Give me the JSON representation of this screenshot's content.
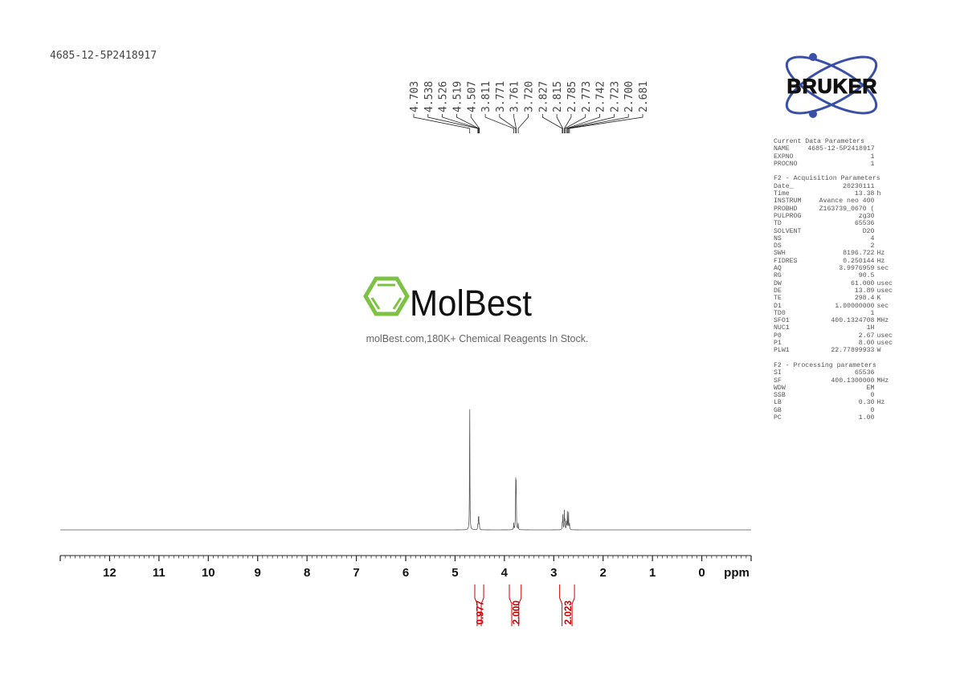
{
  "sample_id": "4685-12-5P2418917",
  "watermark": {
    "brand": "MolBest",
    "tagline": "molBest.com,180K+ Chemical Reagents In Stock.",
    "color": "#7dc242"
  },
  "logo": {
    "text": "BRUKER",
    "color": "#3a4fa8"
  },
  "parameters": {
    "current": {
      "title": "Current Data Parameters",
      "rows": [
        {
          "k": "NAME",
          "v": "4685-12-5P2418917",
          "u": ""
        },
        {
          "k": "EXPNO",
          "v": "1",
          "u": ""
        },
        {
          "k": "PROCNO",
          "v": "1",
          "u": ""
        }
      ]
    },
    "acquisition": {
      "title": "F2 - Acquisition Parameters",
      "rows": [
        {
          "k": "Date_",
          "v": "20230111",
          "u": ""
        },
        {
          "k": "Time",
          "v": "13.38",
          "u": "h"
        },
        {
          "k": "INSTRUM",
          "v": "Avance neo 400",
          "u": ""
        },
        {
          "k": "PROBHD",
          "v": "Z163739_0670 (",
          "u": ""
        },
        {
          "k": "PULPROG",
          "v": "zg30",
          "u": ""
        },
        {
          "k": "TD",
          "v": "65536",
          "u": ""
        },
        {
          "k": "SOLVENT",
          "v": "D2O",
          "u": ""
        },
        {
          "k": "NS",
          "v": "4",
          "u": ""
        },
        {
          "k": "DS",
          "v": "2",
          "u": ""
        },
        {
          "k": "SWH",
          "v": "8196.722",
          "u": "Hz"
        },
        {
          "k": "FIDRES",
          "v": "0.250144",
          "u": "Hz"
        },
        {
          "k": "AQ",
          "v": "3.9976959",
          "u": "sec"
        },
        {
          "k": "RG",
          "v": "90.5",
          "u": ""
        },
        {
          "k": "DW",
          "v": "61.000",
          "u": "usec"
        },
        {
          "k": "DE",
          "v": "13.89",
          "u": "usec"
        },
        {
          "k": "TE",
          "v": "298.4",
          "u": "K"
        },
        {
          "k": "D1",
          "v": "1.00000000",
          "u": "sec"
        },
        {
          "k": "TD0",
          "v": "1",
          "u": ""
        },
        {
          "k": "SFO1",
          "v": "400.1324708",
          "u": "MHz"
        },
        {
          "k": "NUC1",
          "v": "1H",
          "u": ""
        },
        {
          "k": "P0",
          "v": "2.67",
          "u": "usec"
        },
        {
          "k": "P1",
          "v": "8.00",
          "u": "usec"
        },
        {
          "k": "PLW1",
          "v": "22.77899933",
          "u": "W"
        }
      ]
    },
    "processing": {
      "title": "F2 - Processing parameters",
      "rows": [
        {
          "k": "SI",
          "v": "65536",
          "u": ""
        },
        {
          "k": "SF",
          "v": "400.1300000",
          "u": "MHz"
        },
        {
          "k": "WDW",
          "v": "EM",
          "u": ""
        },
        {
          "k": "SSB",
          "v": "0",
          "u": ""
        },
        {
          "k": "LB",
          "v": "0.30",
          "u": "Hz"
        },
        {
          "k": "GB",
          "v": "0",
          "u": ""
        },
        {
          "k": "PC",
          "v": "1.00",
          "u": ""
        }
      ]
    }
  },
  "chart_data": {
    "type": "line",
    "xlabel": "ppm",
    "xlim": [
      13,
      -1
    ],
    "x_reversed": true,
    "xticks": [
      "12",
      "11",
      "10",
      "9",
      "8",
      "7",
      "6",
      "5",
      "4",
      "3",
      "2",
      "1",
      "0"
    ],
    "peak_labels": [
      "4.703",
      "4.538",
      "4.526",
      "4.519",
      "4.507",
      "3.811",
      "3.771",
      "3.761",
      "3.720",
      "2.827",
      "2.815",
      "2.785",
      "2.773",
      "2.742",
      "2.723",
      "2.700",
      "2.681"
    ],
    "peaks": [
      {
        "ppm": 4.703,
        "intensity": 1.0
      },
      {
        "ppm": 4.538,
        "intensity": 0.04
      },
      {
        "ppm": 4.526,
        "intensity": 0.08
      },
      {
        "ppm": 4.519,
        "intensity": 0.08
      },
      {
        "ppm": 4.507,
        "intensity": 0.04
      },
      {
        "ppm": 3.811,
        "intensity": 0.05
      },
      {
        "ppm": 3.771,
        "intensity": 0.37
      },
      {
        "ppm": 3.761,
        "intensity": 0.33
      },
      {
        "ppm": 3.72,
        "intensity": 0.05
      },
      {
        "ppm": 2.827,
        "intensity": 0.05
      },
      {
        "ppm": 2.815,
        "intensity": 0.13
      },
      {
        "ppm": 2.785,
        "intensity": 0.14
      },
      {
        "ppm": 2.773,
        "intensity": 0.07
      },
      {
        "ppm": 2.742,
        "intensity": 0.07
      },
      {
        "ppm": 2.723,
        "intensity": 0.14
      },
      {
        "ppm": 2.7,
        "intensity": 0.13
      },
      {
        "ppm": 2.681,
        "intensity": 0.05
      }
    ],
    "integrals": [
      {
        "from": 4.6,
        "to": 4.42,
        "value": "0.977"
      },
      {
        "from": 3.9,
        "to": 3.66,
        "value": "2.000"
      },
      {
        "from": 2.88,
        "to": 2.58,
        "value": "2.023"
      }
    ],
    "line_color": "#555555",
    "integral_color": "#cc0000"
  }
}
